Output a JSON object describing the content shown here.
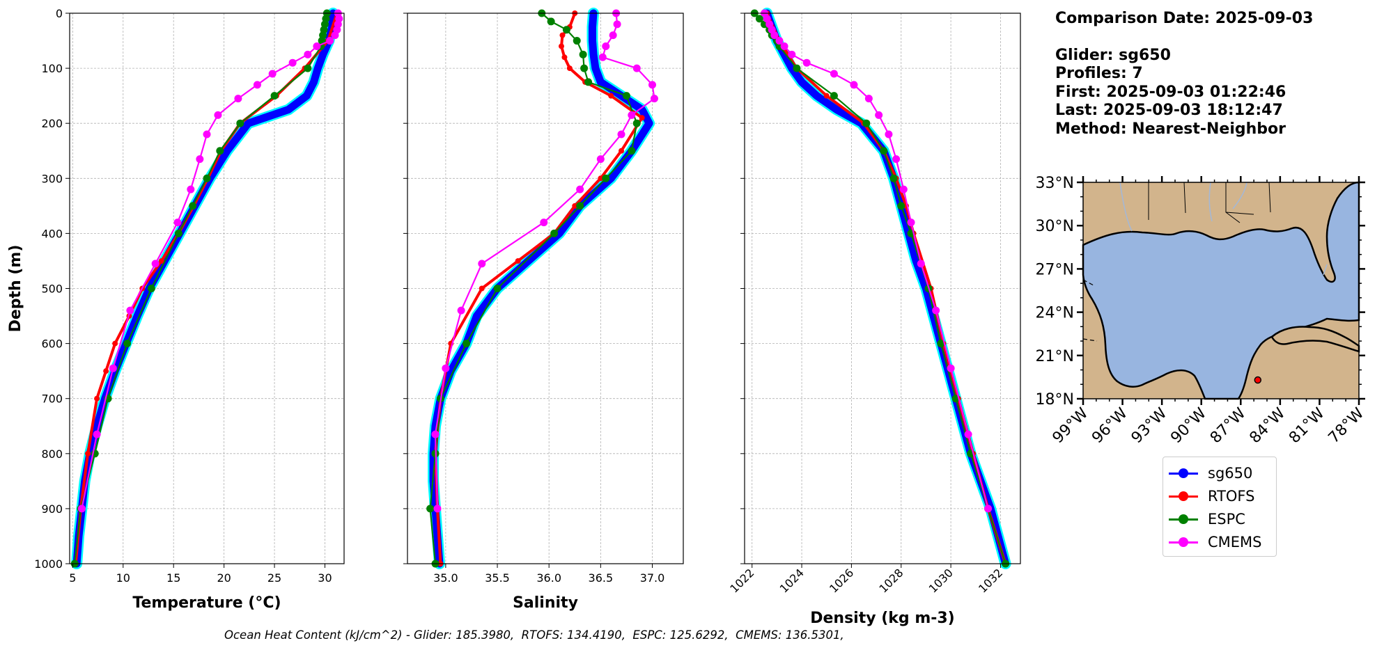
{
  "info": {
    "comparison_date": "Comparison Date: 2025-09-03",
    "glider": "Glider: sg650",
    "profiles": "Profiles: 7",
    "first": "First: 2025-09-03 01:22:46",
    "last": "Last: 2025-09-03 18:12:47",
    "method": "Method: Nearest-Neighbor"
  },
  "footer": "Ocean Heat Content (kJ/cm^2) - Glider: 185.3980,  RTOFS: 134.4190,  ESPC: 125.6292,  CMEMS: 136.5301,",
  "colors": {
    "sg650": "#0000ff",
    "sg650_spread": "#00ffff",
    "RTOFS": "#ff0000",
    "ESPC": "#008000",
    "CMEMS": "#ff00ff",
    "land": "#d2b48c",
    "ocean": "#98b5e0",
    "marker": "#ff0000"
  },
  "legend": [
    "sg650",
    "RTOFS",
    "ESPC",
    "CMEMS"
  ],
  "chart_data": [
    {
      "type": "line",
      "xlabel": "Temperature (°C)",
      "ylabel": "Depth (m)",
      "ylim": [
        1000,
        0
      ],
      "xlim": [
        4.7,
        31.9
      ],
      "xticks": [
        5,
        10,
        15,
        20,
        25,
        30
      ],
      "yticks": [
        0,
        100,
        200,
        300,
        400,
        500,
        600,
        700,
        800,
        900,
        1000
      ],
      "grid": true,
      "series": [
        {
          "name": "sg650",
          "depth": [
            0,
            25,
            50,
            75,
            100,
            125,
            150,
            175,
            200,
            250,
            300,
            350,
            400,
            450,
            500,
            550,
            600,
            650,
            700,
            750,
            800,
            850,
            900,
            950,
            1000
          ],
          "values": [
            30.8,
            30.7,
            30.4,
            29.8,
            29.3,
            28.9,
            28.2,
            26.4,
            22.4,
            20.3,
            18.6,
            17.1,
            15.6,
            14.1,
            12.6,
            11.4,
            10.3,
            9.2,
            8.2,
            7.4,
            6.7,
            6.2,
            5.9,
            5.6,
            5.4
          ]
        },
        {
          "name": "RTOFS",
          "depth": [
            0,
            50,
            100,
            150,
            200,
            250,
            300,
            350,
            400,
            450,
            500,
            550,
            600,
            650,
            700,
            800,
            900,
            1000
          ],
          "values": [
            31.2,
            30.3,
            28.0,
            25.2,
            21.6,
            19.7,
            18.4,
            17.0,
            15.5,
            13.8,
            11.9,
            10.6,
            9.2,
            8.3,
            7.4,
            6.5,
            5.8,
            5.3
          ]
        },
        {
          "name": "ESPC",
          "depth": [
            0,
            10,
            20,
            30,
            40,
            50,
            60,
            100,
            150,
            200,
            250,
            300,
            350,
            400,
            500,
            600,
            700,
            800,
            900,
            1000
          ],
          "values": [
            30.2,
            30.1,
            30.0,
            29.9,
            29.8,
            29.7,
            29.6,
            28.3,
            25.0,
            21.6,
            19.6,
            18.3,
            16.9,
            15.5,
            12.8,
            10.4,
            8.5,
            7.2,
            5.8,
            5.2
          ]
        },
        {
          "name": "CMEMS",
          "depth": [
            0,
            10,
            20,
            30,
            40,
            50,
            60,
            75,
            90,
            110,
            130,
            155,
            185,
            220,
            265,
            320,
            380,
            455,
            540,
            645,
            765,
            900
          ],
          "values": [
            31.3,
            31.4,
            31.3,
            31.2,
            31.0,
            30.5,
            29.2,
            28.3,
            26.8,
            24.8,
            23.3,
            21.4,
            19.4,
            18.3,
            17.6,
            16.7,
            15.4,
            13.2,
            10.7,
            9.0,
            7.4,
            5.9
          ]
        }
      ]
    },
    {
      "type": "line",
      "xlabel": "Salinity",
      "ylim": [
        1000,
        0
      ],
      "xlim": [
        34.63,
        37.3
      ],
      "xticks": [
        35.0,
        35.5,
        36.0,
        36.5,
        37.0
      ],
      "yticks": [
        0,
        100,
        200,
        300,
        400,
        500,
        600,
        700,
        800,
        900,
        1000
      ],
      "grid": true,
      "series": [
        {
          "name": "sg650",
          "depth": [
            0,
            25,
            50,
            75,
            100,
            125,
            150,
            175,
            200,
            250,
            300,
            350,
            400,
            450,
            500,
            550,
            600,
            650,
            700,
            750,
            800,
            850,
            900,
            950,
            1000
          ],
          "values": [
            36.43,
            36.42,
            36.42,
            36.43,
            36.45,
            36.5,
            36.7,
            36.9,
            36.97,
            36.8,
            36.6,
            36.3,
            36.1,
            35.8,
            35.5,
            35.3,
            35.2,
            35.05,
            34.95,
            34.9,
            34.88,
            34.88,
            34.9,
            34.92,
            34.94
          ]
        },
        {
          "name": "RTOFS",
          "depth": [
            0,
            25,
            40,
            60,
            80,
            100,
            125,
            150,
            190,
            250,
            300,
            350,
            400,
            450,
            500,
            600,
            700,
            800,
            900,
            1000
          ],
          "values": [
            36.25,
            36.2,
            36.13,
            36.12,
            36.15,
            36.2,
            36.35,
            36.6,
            36.9,
            36.7,
            36.5,
            36.25,
            36.05,
            35.7,
            35.35,
            35.05,
            34.95,
            34.9,
            34.92,
            34.95
          ]
        },
        {
          "name": "ESPC",
          "depth": [
            0,
            15,
            30,
            50,
            75,
            100,
            125,
            150,
            200,
            250,
            300,
            350,
            400,
            500,
            600,
            700,
            800,
            900,
            1000
          ],
          "values": [
            35.93,
            36.02,
            36.17,
            36.27,
            36.33,
            36.34,
            36.38,
            36.75,
            36.85,
            36.8,
            36.55,
            36.3,
            36.05,
            35.5,
            35.2,
            34.95,
            34.9,
            34.85,
            34.9
          ]
        },
        {
          "name": "CMEMS",
          "depth": [
            0,
            20,
            40,
            60,
            80,
            100,
            130,
            155,
            185,
            220,
            265,
            320,
            380,
            455,
            540,
            645,
            765,
            900
          ],
          "values": [
            36.65,
            36.66,
            36.62,
            36.55,
            36.52,
            36.85,
            37.0,
            37.02,
            36.8,
            36.7,
            36.5,
            36.3,
            35.95,
            35.35,
            35.15,
            35.0,
            34.9,
            34.92
          ]
        }
      ]
    },
    {
      "type": "line",
      "xlabel": "Density (kg m-3)",
      "ylim": [
        1000,
        0
      ],
      "xlim": [
        1021.7,
        1032.8
      ],
      "xticks": [
        1022,
        1024,
        1026,
        1028,
        1030,
        1032
      ],
      "yticks": [
        0,
        100,
        200,
        300,
        400,
        500,
        600,
        700,
        800,
        900,
        1000
      ],
      "grid": true,
      "series": [
        {
          "name": "sg650",
          "depth": [
            0,
            25,
            50,
            75,
            100,
            125,
            150,
            175,
            200,
            250,
            300,
            350,
            400,
            450,
            500,
            550,
            600,
            650,
            700,
            750,
            800,
            850,
            900,
            950,
            1000
          ],
          "values": [
            1022.6,
            1022.8,
            1023.0,
            1023.3,
            1023.6,
            1024.0,
            1024.6,
            1025.4,
            1026.4,
            1027.3,
            1027.7,
            1028.0,
            1028.3,
            1028.6,
            1029.0,
            1029.3,
            1029.6,
            1029.9,
            1030.2,
            1030.5,
            1030.8,
            1031.2,
            1031.6,
            1031.9,
            1032.2
          ]
        },
        {
          "name": "RTOFS",
          "depth": [
            0,
            50,
            100,
            150,
            200,
            250,
            300,
            350,
            400,
            500,
            600,
            700,
            800,
            900,
            1000
          ],
          "values": [
            1022.6,
            1023.1,
            1023.8,
            1025.0,
            1026.5,
            1027.3,
            1027.8,
            1028.2,
            1028.5,
            1029.2,
            1029.7,
            1030.3,
            1030.9,
            1031.5,
            1032.2
          ]
        },
        {
          "name": "ESPC",
          "depth": [
            0,
            10,
            20,
            30,
            40,
            50,
            60,
            100,
            150,
            200,
            250,
            300,
            350,
            400,
            500,
            600,
            700,
            800,
            900,
            1000
          ],
          "values": [
            1022.1,
            1022.3,
            1022.5,
            1022.7,
            1022.8,
            1023.0,
            1023.1,
            1023.8,
            1025.3,
            1026.6,
            1027.3,
            1027.7,
            1028.0,
            1028.4,
            1029.1,
            1029.6,
            1030.2,
            1030.8,
            1031.5,
            1032.2
          ]
        },
        {
          "name": "CMEMS",
          "depth": [
            0,
            10,
            20,
            30,
            40,
            50,
            60,
            75,
            90,
            110,
            130,
            155,
            185,
            220,
            265,
            320,
            380,
            455,
            540,
            645,
            765,
            900
          ],
          "values": [
            1022.5,
            1022.6,
            1022.7,
            1022.8,
            1022.9,
            1023.1,
            1023.3,
            1023.6,
            1024.2,
            1025.3,
            1026.1,
            1026.7,
            1027.1,
            1027.5,
            1027.8,
            1028.1,
            1028.4,
            1028.8,
            1029.4,
            1030.0,
            1030.7,
            1031.5
          ]
        }
      ]
    },
    {
      "type": "map",
      "region": "Gulf of Mexico",
      "lon_ticks": [
        "99°W",
        "96°W",
        "93°W",
        "90°W",
        "87°W",
        "84°W",
        "81°W",
        "78°W"
      ],
      "lat_ticks": [
        "33°N",
        "30°N",
        "27°N",
        "24°N",
        "21°N",
        "18°N"
      ],
      "lon_values": [
        -99,
        -96,
        -93,
        -90,
        -87,
        -84,
        -81,
        -78
      ],
      "lat_values": [
        33,
        30,
        27,
        24,
        21,
        18
      ],
      "glider_position": {
        "lon": -85.7,
        "lat": 19.3
      }
    }
  ]
}
